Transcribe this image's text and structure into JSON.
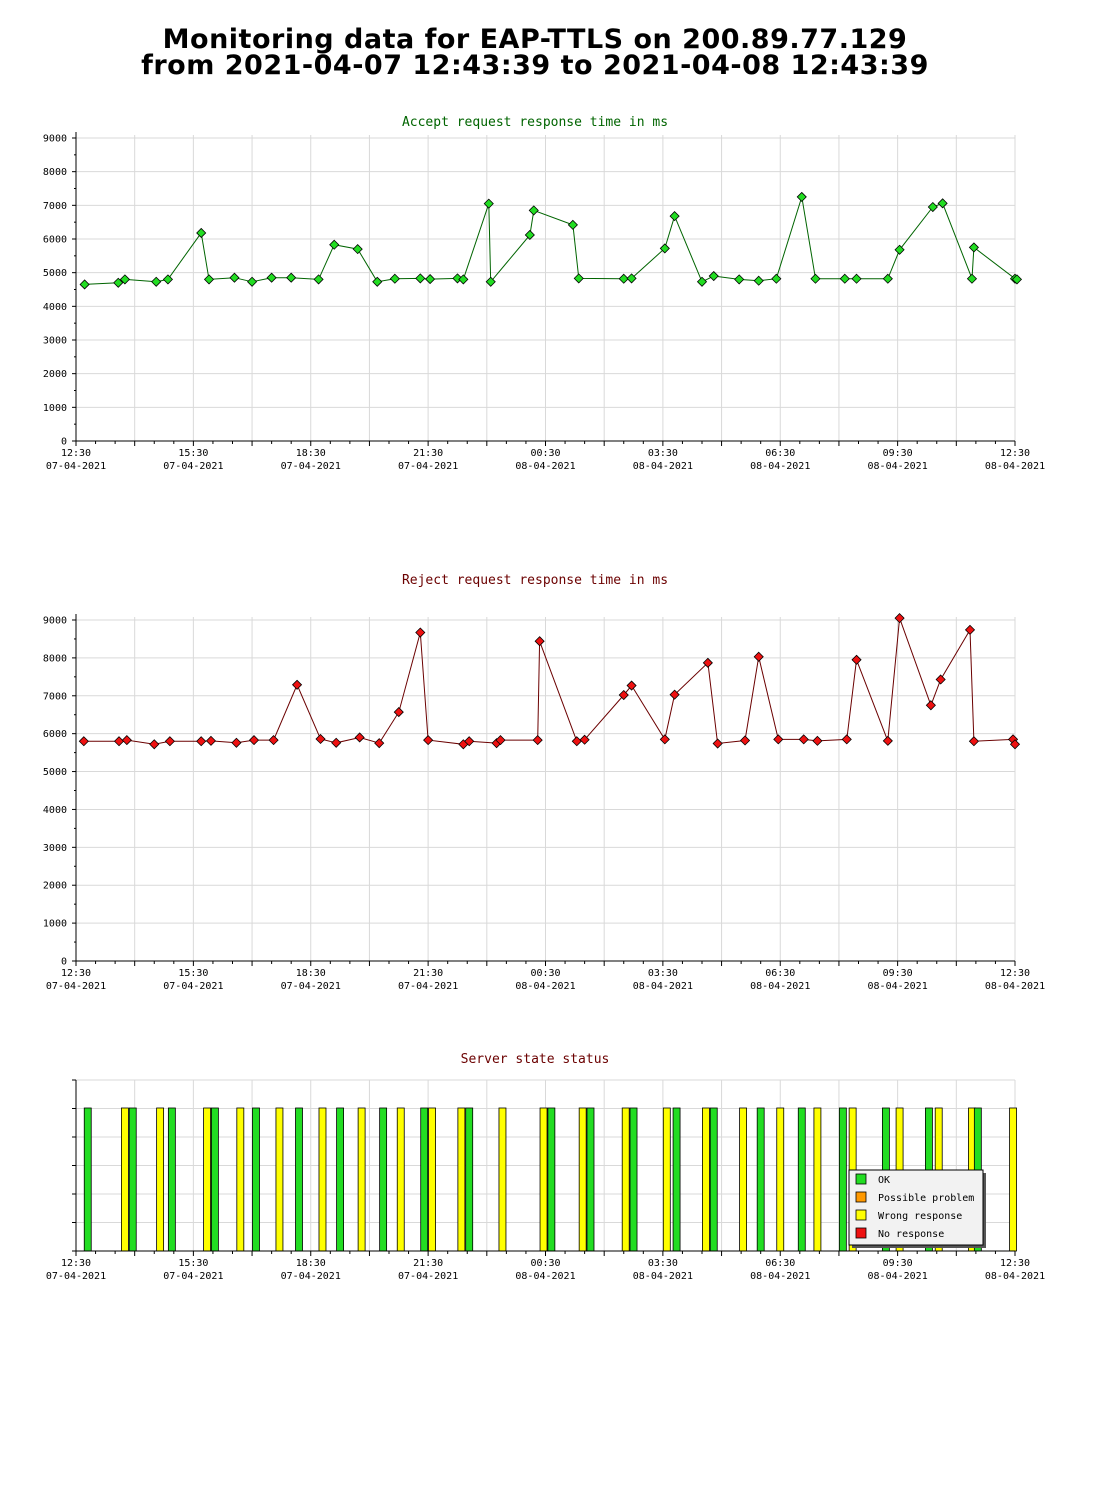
{
  "title_line1": "Monitoring data for EAP-TTLS on 200.89.77.129",
  "title_line2": "from 2021-04-07 12:43:39 to 2021-04-08 12:43:39",
  "colors": {
    "accept_line": "#006400",
    "accept_marker": "#22dd22",
    "reject_line": "#6b0000",
    "reject_marker": "#ee1111",
    "ok": "#22dd22",
    "possible_problem": "#ff9900",
    "wrong_response": "#ffff00",
    "no_response": "#ee1111",
    "grid": "#d9d9d9",
    "accept_title": "#006400",
    "reject_title": "#6b0000"
  },
  "x_ticks": [
    {
      "time": "12:30",
      "date": "07-04-2021"
    },
    {
      "time": "15:30",
      "date": "07-04-2021"
    },
    {
      "time": "18:30",
      "date": "07-04-2021"
    },
    {
      "time": "21:30",
      "date": "07-04-2021"
    },
    {
      "time": "00:30",
      "date": "08-04-2021"
    },
    {
      "time": "03:30",
      "date": "08-04-2021"
    },
    {
      "time": "06:30",
      "date": "08-04-2021"
    },
    {
      "time": "09:30",
      "date": "08-04-2021"
    },
    {
      "time": "12:30",
      "date": "08-04-2021"
    }
  ],
  "legend": [
    "OK",
    "Possible problem",
    "Wrong response",
    "No response"
  ],
  "chart_data": [
    {
      "type": "line",
      "title": "Accept request response time in ms",
      "x_unit": "hours since 07-04-2021 12:30",
      "xlim": [
        0,
        24
      ],
      "ylim": [
        0,
        9000
      ],
      "yticks": [
        0,
        1000,
        2000,
        3000,
        4000,
        5000,
        6000,
        7000,
        8000,
        9000
      ],
      "grid": true,
      "points": [
        [
          0.22,
          4650
        ],
        [
          1.08,
          4700
        ],
        [
          1.25,
          4800
        ],
        [
          2.05,
          4730
        ],
        [
          2.35,
          4800
        ],
        [
          3.2,
          6180
        ],
        [
          3.4,
          4800
        ],
        [
          4.05,
          4850
        ],
        [
          4.5,
          4730
        ],
        [
          5.0,
          4850
        ],
        [
          5.5,
          4850
        ],
        [
          6.2,
          4800
        ],
        [
          6.6,
          5830
        ],
        [
          7.2,
          5700
        ],
        [
          7.7,
          4730
        ],
        [
          8.15,
          4820
        ],
        [
          8.8,
          4830
        ],
        [
          9.05,
          4810
        ],
        [
          9.75,
          4830
        ],
        [
          9.9,
          4800
        ],
        [
          10.55,
          7050
        ],
        [
          10.6,
          4730
        ],
        [
          11.6,
          6120
        ],
        [
          11.7,
          6850
        ],
        [
          12.7,
          6420
        ],
        [
          12.85,
          4830
        ],
        [
          14.0,
          4820
        ],
        [
          14.2,
          4830
        ],
        [
          15.05,
          5720
        ],
        [
          15.3,
          6680
        ],
        [
          16.0,
          4730
        ],
        [
          16.3,
          4900
        ],
        [
          16.95,
          4800
        ],
        [
          17.45,
          4760
        ],
        [
          17.9,
          4820
        ],
        [
          18.55,
          7250
        ],
        [
          18.9,
          4820
        ],
        [
          19.65,
          4820
        ],
        [
          19.95,
          4820
        ],
        [
          20.75,
          4820
        ],
        [
          21.05,
          5680
        ],
        [
          21.9,
          6950
        ],
        [
          22.15,
          7060
        ],
        [
          22.9,
          4820
        ],
        [
          22.95,
          5750
        ],
        [
          24.0,
          4820
        ],
        [
          24.05,
          4800
        ]
      ]
    },
    {
      "type": "line",
      "title": "Reject request response time in ms",
      "x_unit": "hours since 07-04-2021 12:30",
      "xlim": [
        0,
        24
      ],
      "ylim": [
        0,
        9000
      ],
      "yticks": [
        0,
        1000,
        2000,
        3000,
        4000,
        5000,
        6000,
        7000,
        8000,
        9000
      ],
      "grid": true,
      "points": [
        [
          0.2,
          5800
        ],
        [
          1.1,
          5800
        ],
        [
          1.3,
          5830
        ],
        [
          2.0,
          5720
        ],
        [
          2.4,
          5800
        ],
        [
          3.2,
          5800
        ],
        [
          3.45,
          5810
        ],
        [
          4.1,
          5760
        ],
        [
          4.55,
          5830
        ],
        [
          5.05,
          5830
        ],
        [
          5.65,
          7290
        ],
        [
          6.25,
          5860
        ],
        [
          6.65,
          5760
        ],
        [
          7.25,
          5900
        ],
        [
          7.75,
          5750
        ],
        [
          8.25,
          6570
        ],
        [
          8.8,
          8670
        ],
        [
          9.0,
          5830
        ],
        [
          9.9,
          5720
        ],
        [
          10.05,
          5800
        ],
        [
          10.75,
          5750
        ],
        [
          10.85,
          5830
        ],
        [
          11.8,
          5830
        ],
        [
          11.85,
          8440
        ],
        [
          12.8,
          5800
        ],
        [
          13.0,
          5840
        ],
        [
          14.0,
          7020
        ],
        [
          14.2,
          7270
        ],
        [
          15.05,
          5850
        ],
        [
          15.3,
          7030
        ],
        [
          16.15,
          7870
        ],
        [
          16.4,
          5740
        ],
        [
          17.1,
          5820
        ],
        [
          17.45,
          8030
        ],
        [
          17.95,
          5850
        ],
        [
          18.6,
          5850
        ],
        [
          18.95,
          5810
        ],
        [
          19.7,
          5850
        ],
        [
          19.95,
          7950
        ],
        [
          20.75,
          5810
        ],
        [
          21.05,
          9050
        ],
        [
          21.85,
          6750
        ],
        [
          22.1,
          7430
        ],
        [
          22.85,
          8740
        ],
        [
          22.95,
          5800
        ],
        [
          23.95,
          5850
        ],
        [
          24.0,
          5720
        ]
      ]
    },
    {
      "type": "bar",
      "title": "Server state status",
      "x_unit": "hours since 07-04-2021 12:30",
      "xlim": [
        0,
        24
      ],
      "bars": [
        {
          "x": 0.3,
          "state": "OK"
        },
        {
          "x": 1.25,
          "state": "Wrong response"
        },
        {
          "x": 1.45,
          "state": "OK"
        },
        {
          "x": 2.15,
          "state": "Wrong response"
        },
        {
          "x": 2.45,
          "state": "OK"
        },
        {
          "x": 3.35,
          "state": "Wrong response"
        },
        {
          "x": 3.55,
          "state": "OK"
        },
        {
          "x": 4.2,
          "state": "Wrong response"
        },
        {
          "x": 4.6,
          "state": "OK"
        },
        {
          "x": 5.2,
          "state": "Wrong response"
        },
        {
          "x": 5.7,
          "state": "OK"
        },
        {
          "x": 6.3,
          "state": "Wrong response"
        },
        {
          "x": 6.75,
          "state": "OK"
        },
        {
          "x": 7.3,
          "state": "Wrong response"
        },
        {
          "x": 7.85,
          "state": "OK"
        },
        {
          "x": 8.3,
          "state": "Wrong response"
        },
        {
          "x": 8.9,
          "state": "OK"
        },
        {
          "x": 9.1,
          "state": "Wrong response"
        },
        {
          "x": 9.85,
          "state": "Wrong response"
        },
        {
          "x": 10.05,
          "state": "OK"
        },
        {
          "x": 10.9,
          "state": "Wrong response"
        },
        {
          "x": 11.95,
          "state": "Wrong response"
        },
        {
          "x": 12.15,
          "state": "OK"
        },
        {
          "x": 12.95,
          "state": "Wrong response"
        },
        {
          "x": 13.15,
          "state": "OK"
        },
        {
          "x": 14.05,
          "state": "Wrong response"
        },
        {
          "x": 14.25,
          "state": "OK"
        },
        {
          "x": 15.1,
          "state": "Wrong response"
        },
        {
          "x": 15.35,
          "state": "OK"
        },
        {
          "x": 16.1,
          "state": "Wrong response"
        },
        {
          "x": 16.3,
          "state": "OK"
        },
        {
          "x": 17.05,
          "state": "Wrong response"
        },
        {
          "x": 17.5,
          "state": "OK"
        },
        {
          "x": 18.0,
          "state": "Wrong response"
        },
        {
          "x": 18.55,
          "state": "OK"
        },
        {
          "x": 18.95,
          "state": "Wrong response"
        },
        {
          "x": 19.6,
          "state": "OK"
        },
        {
          "x": 19.85,
          "state": "Wrong response"
        },
        {
          "x": 20.7,
          "state": "OK"
        },
        {
          "x": 21.05,
          "state": "Wrong response"
        },
        {
          "x": 21.8,
          "state": "OK"
        },
        {
          "x": 22.05,
          "state": "Wrong response"
        },
        {
          "x": 22.9,
          "state": "Wrong response"
        },
        {
          "x": 23.05,
          "state": "OK"
        },
        {
          "x": 23.95,
          "state": "Wrong response"
        }
      ]
    }
  ]
}
